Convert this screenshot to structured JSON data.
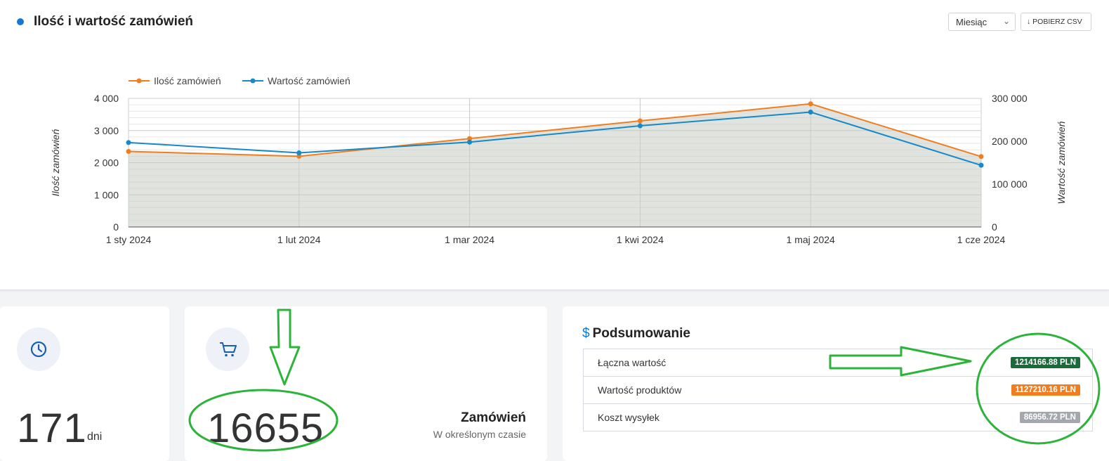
{
  "header": {
    "title": "Ilość i wartość zamówień",
    "period_select": "Miesiąc",
    "csv_button": "POBIERZ CSV"
  },
  "chart_data": {
    "type": "line",
    "x": [
      "1 sty 2024",
      "1 lut 2024",
      "1 mar 2024",
      "1 kwi 2024",
      "1 maj 2024",
      "1 cze 2024"
    ],
    "series": [
      {
        "name": "Ilość zamówień",
        "axis": "left",
        "color": "#f07e1f",
        "values": [
          2350,
          2200,
          2750,
          3300,
          3830,
          2190
        ]
      },
      {
        "name": "Wartość zamówień",
        "axis": "right",
        "color": "#1788c8",
        "values": [
          197000,
          173000,
          198000,
          236000,
          268000,
          144000
        ]
      }
    ],
    "ylabel": "Ilość zamówień",
    "y2label": "Wartość zamówień",
    "ylim": [
      0,
      4000
    ],
    "y2lim": [
      0,
      300000
    ],
    "yticks": [
      "0",
      "1 000",
      "2 000",
      "3 000",
      "4 000"
    ],
    "y2ticks": [
      "0",
      "100 000",
      "200 000",
      "300 000"
    ],
    "legend": "top-left",
    "grid": true
  },
  "cards": {
    "days": {
      "value": "171",
      "unit": "dni"
    },
    "orders": {
      "value": "16655",
      "label": "Zamówień",
      "sublabel": "W określonym czasie"
    }
  },
  "summary": {
    "title": "Podsumowanie",
    "rows": [
      {
        "label": "Łączna wartość",
        "value": "1214166.88 PLN",
        "color": "#1a6b3a"
      },
      {
        "label": "Wartość produktów",
        "value": "1127210.16 PLN",
        "color": "#f07e1f"
      },
      {
        "label": "Koszt wysyłek",
        "value": "86956.72 PLN",
        "color": "#a3a8ae"
      }
    ]
  },
  "annotations": {
    "color": "#2bb33a"
  }
}
